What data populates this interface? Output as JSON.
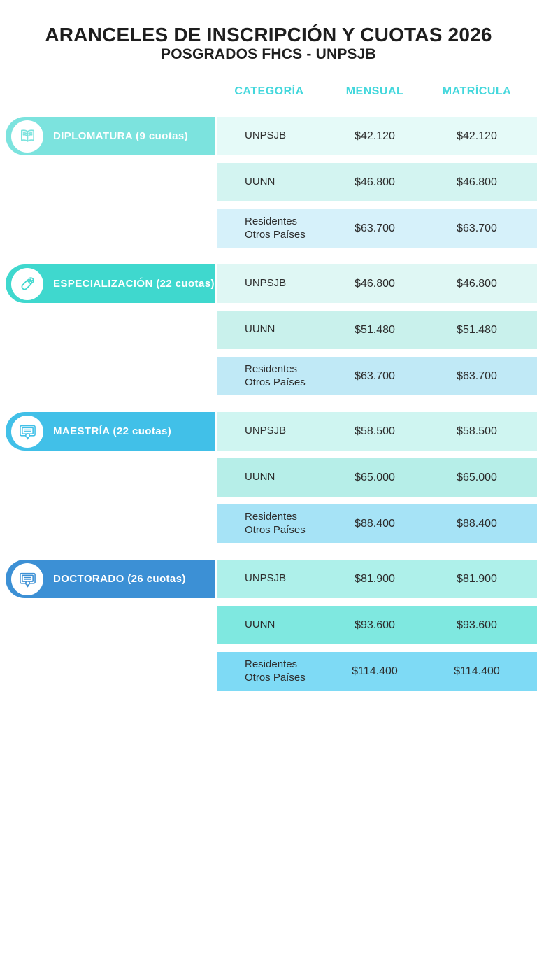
{
  "title": "ARANCELES DE INSCRIPCIÓN Y CUOTAS 2026",
  "subtitle": "POSGRADOS FHCS - UNPSJB",
  "columns": {
    "categoria": "CATEGORÍA",
    "mensual": "MENSUAL",
    "matricula": "MATRÍCULA"
  },
  "colors": {
    "accent_header": "#43d7dc",
    "text_dark": "#1e1e1e",
    "row_text": "#2d2d2d"
  },
  "sections": [
    {
      "label": "DIPLOMATURA (9 cuotas)",
      "icon": "open-book-icon",
      "bar_color": "#7ce3de",
      "rows": [
        {
          "categoria": "UNPSJB",
          "mensual": "$42.120",
          "matricula": "$42.120",
          "bg": "#e5faf8"
        },
        {
          "categoria": "UUNN",
          "mensual": "$46.800",
          "matricula": "$46.800",
          "bg": "#d3f4f1"
        },
        {
          "categoria": "Residentes\nOtros Países",
          "mensual": "$63.700",
          "matricula": "$63.700",
          "bg": "#d6f1fa"
        }
      ]
    },
    {
      "label": "ESPECIALIZACIÓN (22 cuotas)",
      "icon": "diploma-scroll-icon",
      "bar_color": "#3fd8ce",
      "rows": [
        {
          "categoria": "UNPSJB",
          "mensual": "$46.800",
          "matricula": "$46.800",
          "bg": "#dff7f4"
        },
        {
          "categoria": "UUNN",
          "mensual": "$51.480",
          "matricula": "$51.480",
          "bg": "#c9f1ec"
        },
        {
          "categoria": "Residentes\nOtros Países",
          "mensual": "$63.700",
          "matricula": "$63.700",
          "bg": "#c0e9f6"
        }
      ]
    },
    {
      "label": "MAESTRÍA (22 cuotas)",
      "icon": "certificate-icon",
      "bar_color": "#41c0e8",
      "rows": [
        {
          "categoria": "UNPSJB",
          "mensual": "$58.500",
          "matricula": "$58.500",
          "bg": "#cff5f1"
        },
        {
          "categoria": "UUNN",
          "mensual": "$65.000",
          "matricula": "$65.000",
          "bg": "#b6eee8"
        },
        {
          "categoria": "Residentes\nOtros Países",
          "mensual": "$88.400",
          "matricula": "$88.400",
          "bg": "#a6e3f6"
        }
      ]
    },
    {
      "label": "DOCTORADO (26 cuotas)",
      "icon": "certificate-icon",
      "bar_color": "#3c90d5",
      "rows": [
        {
          "categoria": "UNPSJB",
          "mensual": "$81.900",
          "matricula": "$81.900",
          "bg": "#aef0ea"
        },
        {
          "categoria": "UUNN",
          "mensual": "$93.600",
          "matricula": "$93.600",
          "bg": "#7fe8e0"
        },
        {
          "categoria": "Residentes\nOtros Países",
          "mensual": "$114.400",
          "matricula": "$114.400",
          "bg": "#7edaf5"
        }
      ]
    }
  ]
}
